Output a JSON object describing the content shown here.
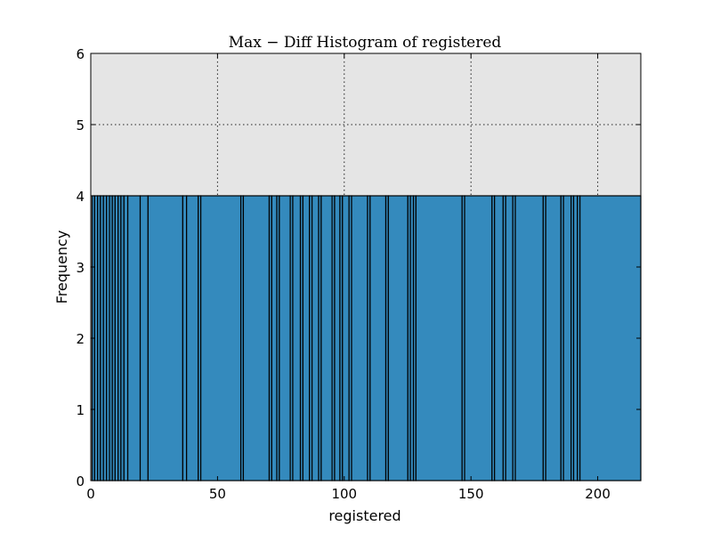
{
  "chart_data": {
    "type": "bar",
    "title": "Max − Diff Histogram of registered",
    "xlabel": "registered",
    "ylabel": "Frequency",
    "xlim": [
      0,
      217
    ],
    "ylim": [
      0,
      6
    ],
    "xticks": [
      0,
      50,
      100,
      150,
      200
    ],
    "yticks": [
      0,
      1,
      2,
      3,
      4,
      5,
      6
    ],
    "grid": true,
    "bar_color": "#348ABD",
    "background_color": "#E5E5E5",
    "bin_edges": [
      0.5,
      1.5,
      2.7,
      3.8,
      5.0,
      6.2,
      7.4,
      8.5,
      9.6,
      10.8,
      11.9,
      13.1,
      14.6,
      19.5,
      22.6,
      36.3,
      37.8,
      42.4,
      43.4,
      59.2,
      60.2,
      70.4,
      71.4,
      73.4,
      74.4,
      78.7,
      79.7,
      82.7,
      83.7,
      86.3,
      87.3,
      89.9,
      90.9,
      95.2,
      96.2,
      98.3,
      99.3,
      101.9,
      102.9,
      109.2,
      110.2,
      116.4,
      117.4,
      125.1,
      126.1,
      127.3,
      128.3,
      146.5,
      147.5,
      158.3,
      159.3,
      162.7,
      163.7,
      166.5,
      167.5,
      178.5,
      179.5,
      185.5,
      186.5,
      189.5,
      190.5,
      192.0,
      193.0,
      217.0
    ],
    "values": [
      4,
      4,
      4,
      4,
      4,
      4,
      4,
      4,
      4,
      4,
      4,
      4,
      4,
      4,
      4,
      4,
      4,
      4,
      4,
      4,
      4,
      4,
      4,
      4,
      4,
      4,
      4,
      4,
      4,
      4,
      4,
      4,
      4,
      4,
      4,
      4,
      4,
      4,
      4,
      4,
      4,
      4,
      4,
      4,
      4,
      4,
      4,
      4,
      4,
      4,
      4,
      4,
      4,
      4,
      4,
      4,
      4,
      4,
      4,
      4,
      4,
      4,
      4
    ]
  }
}
